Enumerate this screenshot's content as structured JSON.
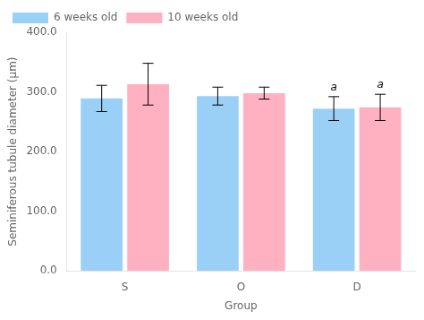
{
  "chart_data": {
    "type": "bar",
    "xlabel": "Group",
    "ylabel": "Seminiferous tubule diameter (μm)",
    "categories": [
      "S",
      "O",
      "D"
    ],
    "series": [
      {
        "name": "6 weeks old",
        "values": [
          289,
          293,
          272
        ],
        "errors": [
          22,
          15,
          20
        ]
      },
      {
        "name": "10 weeks old",
        "values": [
          313,
          298,
          274
        ],
        "errors": [
          35,
          10,
          22
        ]
      }
    ],
    "ylim": [
      0,
      400
    ],
    "yticks": [
      {
        "value": 0,
        "label": "0.0"
      },
      {
        "value": 100,
        "label": "100.0"
      },
      {
        "value": 200,
        "label": "200.0"
      },
      {
        "value": 300,
        "label": "300.0"
      },
      {
        "value": 400,
        "label": "400.0"
      }
    ],
    "grid": false,
    "legend": "upper left",
    "annotations": [
      {
        "text": "a",
        "category": "D",
        "series": "6 weeks old"
      },
      {
        "text": "a",
        "category": "D",
        "series": "10 weeks old"
      }
    ]
  }
}
